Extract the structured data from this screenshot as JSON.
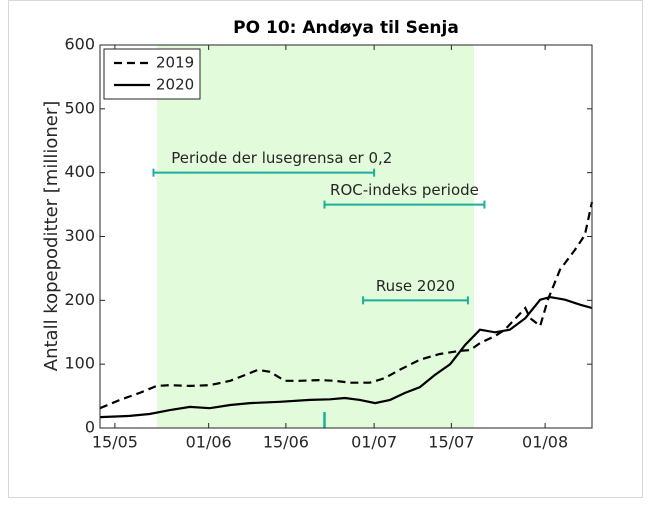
{
  "chart_data": {
    "type": "line",
    "title": "PO 10: Andøya til Senja",
    "y_label": "Antall kopepoditter [millioner]",
    "xlim": [
      132.3,
      221.5
    ],
    "ylim": [
      0,
      600
    ],
    "xticks": [
      {
        "value": 135,
        "label": "15/05"
      },
      {
        "value": 152,
        "label": "01/06"
      },
      {
        "value": 166,
        "label": "15/06"
      },
      {
        "value": 182,
        "label": "01/07"
      },
      {
        "value": 196,
        "label": "15/07"
      },
      {
        "value": 213,
        "label": "01/08"
      }
    ],
    "yticks": [
      0,
      100,
      200,
      300,
      400,
      500,
      600
    ],
    "shaded_region": {
      "start": 142.6,
      "end": 200.1,
      "color": "#e2fbda"
    },
    "intervals": [
      {
        "label": "Periode der lusegrensa er 0,2",
        "start": 142,
        "end": 182,
        "y": 400
      },
      {
        "label": "ROC-indeks periode",
        "start": 173,
        "end": 202,
        "y": 350
      },
      {
        "label": "Ruse 2020",
        "start": 180,
        "end": 199,
        "y": 200
      }
    ],
    "interval_color": "#1aaf98",
    "marker": {
      "x": 173,
      "height": 25
    },
    "legend": "upper left",
    "series": [
      {
        "name": "2019",
        "color": "#000000",
        "dash": true,
        "x": [
          132.3,
          135.9,
          139.5,
          142.6,
          145,
          148.6,
          152.2,
          155.9,
          158.6,
          160.9,
          163.1,
          165.8,
          168.5,
          172.2,
          174.9,
          177.6,
          181.2,
          183.9,
          186.6,
          190.3,
          193.9,
          197.6,
          199.4,
          201.2,
          203.9,
          205.7,
          209.4,
          210.3,
          212.1,
          213.5,
          215.7,
          218.4,
          220.2,
          221.5
        ],
        "values": [
          31,
          44,
          55,
          66,
          67,
          66,
          67,
          74,
          83,
          91,
          88,
          74,
          74,
          75,
          74,
          71,
          71,
          78,
          91,
          107,
          116,
          121,
          122,
          133,
          144,
          154,
          188,
          172,
          160,
          201,
          248,
          279,
          302,
          354
        ]
      },
      {
        "name": "2020",
        "color": "#000000",
        "dash": false,
        "x": [
          132.3,
          137.7,
          141.3,
          145,
          148.6,
          152.2,
          155.9,
          159.5,
          164.9,
          170.4,
          174,
          176.7,
          179.4,
          182.2,
          184.9,
          187.6,
          190.3,
          193,
          195.8,
          198.5,
          201.2,
          203.9,
          206.6,
          209.4,
          212.1,
          213.9,
          216.6,
          219.4,
          221.5
        ],
        "values": [
          17,
          19,
          22,
          28,
          33,
          31,
          36,
          39,
          41,
          44,
          45,
          47,
          44,
          39,
          44,
          55,
          64,
          83,
          100,
          130,
          154,
          150,
          154,
          172,
          201,
          205,
          201,
          193,
          188
        ]
      }
    ]
  }
}
